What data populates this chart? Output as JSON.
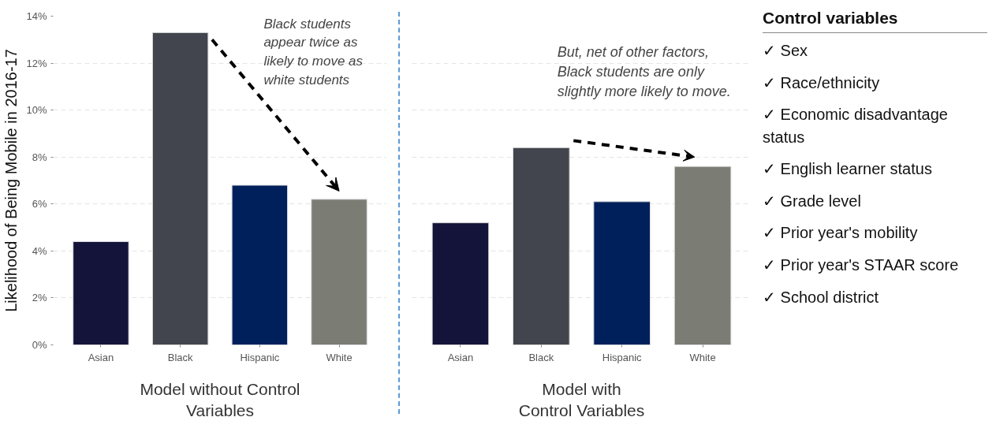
{
  "chart_data": [
    {
      "type": "bar",
      "xlabel": "Model without Control\nVariables",
      "ylabel": "Likelihood of Being Mobile in 2016-17",
      "categories": [
        "Asian",
        "Black",
        "Hispanic",
        "White"
      ],
      "values": [
        4.4,
        13.3,
        6.8,
        6.2
      ],
      "colors": [
        "#14143a",
        "#42454d",
        "#00205b",
        "#7b7c74"
      ],
      "ylim": [
        0,
        14
      ],
      "yticks": [
        {
          "value": 0,
          "label": "0%"
        },
        {
          "value": 2,
          "label": "2%"
        },
        {
          "value": 4,
          "label": "4%"
        },
        {
          "value": 6,
          "label": "6%"
        },
        {
          "value": 8,
          "label": "8%"
        },
        {
          "value": 10,
          "label": "10%"
        },
        {
          "value": 12,
          "label": "12%"
        },
        {
          "value": 14,
          "label": "14%"
        }
      ],
      "grid": "y",
      "annotations": [
        "Black students\nappear twice as\nlikely to move as\nwhite students"
      ]
    },
    {
      "type": "bar",
      "xlabel": "Model with\nControl Variables",
      "categories": [
        "Asian",
        "Black",
        "Hispanic",
        "White"
      ],
      "values": [
        5.2,
        8.4,
        6.1,
        7.6
      ],
      "colors": [
        "#14143a",
        "#42454d",
        "#00205b",
        "#7b7c74"
      ],
      "ylim": [
        0,
        14
      ],
      "yticks": [
        0,
        2,
        4,
        6,
        8,
        10,
        12,
        14
      ],
      "grid": "y",
      "tick_labels": "x",
      "annotations": [
        "But, net of other factors,\nBlack students are only\nslightly more likely to move."
      ]
    },
    {
      "type": "other",
      "title": "Control variables",
      "annotations": [
        "✓ Sex",
        "✓ Race/ethnicity",
        "✓ Economic disadvantage status",
        "✓ English learner status",
        "✓ Grade level",
        "✓ Prior year's mobility",
        "✓ Prior year's STAAR score",
        "✓ School district"
      ]
    }
  ]
}
